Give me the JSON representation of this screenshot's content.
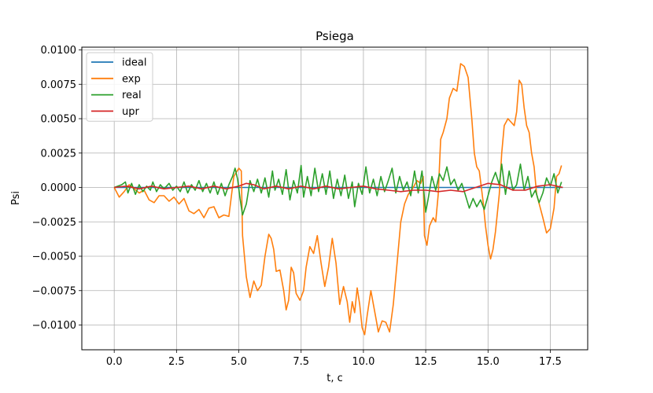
{
  "chart_data": {
    "type": "line",
    "title": "Psiega",
    "xlabel": "t, c",
    "ylabel": "Psi",
    "xlim": [
      -1.3,
      19.0
    ],
    "ylim": [
      -0.0118,
      0.0102
    ],
    "grid": true,
    "legend_position": "top-left",
    "x_ticks": [
      0.0,
      2.5,
      5.0,
      7.5,
      10.0,
      12.5,
      15.0,
      17.5
    ],
    "x_tick_labels": [
      "0.0",
      "2.5",
      "5.0",
      "7.5",
      "10.0",
      "12.5",
      "15.0",
      "17.5"
    ],
    "y_ticks": [
      0.01,
      0.0075,
      0.005,
      0.0025,
      0.0,
      -0.0025,
      -0.005,
      -0.0075,
      -0.01
    ],
    "y_tick_labels": [
      "0.0100",
      "0.0075",
      "0.0050",
      "0.0025",
      "0.0000",
      "−0.0025",
      "−0.0050",
      "−0.0075",
      "−0.0100"
    ],
    "series": [
      {
        "name": "ideal",
        "color": "#1f77b4",
        "points": [
          [
            0.0,
            0.0
          ],
          [
            18.0,
            0.0
          ]
        ]
      },
      {
        "name": "exp",
        "color": "#ff7f0e",
        "points": [
          [
            0.0,
            0.0
          ],
          [
            0.2,
            -0.0007
          ],
          [
            0.4,
            -0.0003
          ],
          [
            0.6,
            0.0002
          ],
          [
            0.8,
            -0.0001
          ],
          [
            1.0,
            -0.0004
          ],
          [
            1.2,
            -0.0002
          ],
          [
            1.4,
            -0.0009
          ],
          [
            1.6,
            -0.0011
          ],
          [
            1.8,
            -0.0006
          ],
          [
            2.0,
            -0.0006
          ],
          [
            2.2,
            -0.001
          ],
          [
            2.4,
            -0.0007
          ],
          [
            2.6,
            -0.0012
          ],
          [
            2.8,
            -0.0008
          ],
          [
            3.0,
            -0.0017
          ],
          [
            3.2,
            -0.0019
          ],
          [
            3.4,
            -0.0016
          ],
          [
            3.6,
            -0.0022
          ],
          [
            3.8,
            -0.0015
          ],
          [
            4.0,
            -0.0014
          ],
          [
            4.2,
            -0.0022
          ],
          [
            4.4,
            -0.002
          ],
          [
            4.6,
            -0.0021
          ],
          [
            4.8,
            0.0008
          ],
          [
            5.0,
            0.0014
          ],
          [
            5.1,
            0.0012
          ],
          [
            5.15,
            -0.0035
          ],
          [
            5.3,
            -0.0065
          ],
          [
            5.45,
            -0.008
          ],
          [
            5.6,
            -0.0068
          ],
          [
            5.75,
            -0.0075
          ],
          [
            5.9,
            -0.0071
          ],
          [
            6.05,
            -0.005
          ],
          [
            6.2,
            -0.0034
          ],
          [
            6.3,
            -0.0037
          ],
          [
            6.4,
            -0.0045
          ],
          [
            6.5,
            -0.0061
          ],
          [
            6.65,
            -0.006
          ],
          [
            6.8,
            -0.0075
          ],
          [
            6.9,
            -0.0089
          ],
          [
            7.0,
            -0.0082
          ],
          [
            7.1,
            -0.0058
          ],
          [
            7.2,
            -0.0062
          ],
          [
            7.3,
            -0.0077
          ],
          [
            7.45,
            -0.0082
          ],
          [
            7.6,
            -0.0075
          ],
          [
            7.7,
            -0.0058
          ],
          [
            7.85,
            -0.0043
          ],
          [
            8.0,
            -0.0048
          ],
          [
            8.15,
            -0.0035
          ],
          [
            8.3,
            -0.0055
          ],
          [
            8.45,
            -0.0072
          ],
          [
            8.6,
            -0.0058
          ],
          [
            8.75,
            -0.0037
          ],
          [
            8.9,
            -0.0055
          ],
          [
            9.05,
            -0.0085
          ],
          [
            9.2,
            -0.0072
          ],
          [
            9.35,
            -0.0083
          ],
          [
            9.45,
            -0.0098
          ],
          [
            9.55,
            -0.0083
          ],
          [
            9.65,
            -0.0091
          ],
          [
            9.75,
            -0.0073
          ],
          [
            9.85,
            -0.0085
          ],
          [
            9.95,
            -0.0102
          ],
          [
            10.05,
            -0.0107
          ],
          [
            10.15,
            -0.0093
          ],
          [
            10.3,
            -0.0075
          ],
          [
            10.5,
            -0.0095
          ],
          [
            10.6,
            -0.0105
          ],
          [
            10.75,
            -0.0097
          ],
          [
            10.9,
            -0.0098
          ],
          [
            11.05,
            -0.0105
          ],
          [
            11.2,
            -0.0085
          ],
          [
            11.35,
            -0.0055
          ],
          [
            11.5,
            -0.0025
          ],
          [
            11.65,
            -0.0012
          ],
          [
            11.8,
            -0.0005
          ],
          [
            12.0,
            0.0
          ],
          [
            12.15,
            0.0005
          ],
          [
            12.3,
            0.0003
          ],
          [
            12.4,
            0.0008
          ],
          [
            12.45,
            -0.0035
          ],
          [
            12.55,
            -0.0042
          ],
          [
            12.65,
            -0.0028
          ],
          [
            12.8,
            -0.0022
          ],
          [
            12.9,
            -0.0025
          ],
          [
            13.0,
            -0.0005
          ],
          [
            13.1,
            0.0035
          ],
          [
            13.2,
            0.004
          ],
          [
            13.35,
            0.005
          ],
          [
            13.45,
            0.0065
          ],
          [
            13.6,
            0.0072
          ],
          [
            13.75,
            0.007
          ],
          [
            13.9,
            0.009
          ],
          [
            14.05,
            0.0088
          ],
          [
            14.2,
            0.008
          ],
          [
            14.35,
            0.005
          ],
          [
            14.45,
            0.0025
          ],
          [
            14.55,
            0.0015
          ],
          [
            14.65,
            0.0012
          ],
          [
            14.8,
            -0.001
          ],
          [
            14.9,
            -0.0028
          ],
          [
            15.0,
            -0.0042
          ],
          [
            15.1,
            -0.0052
          ],
          [
            15.2,
            -0.0045
          ],
          [
            15.3,
            -0.0032
          ],
          [
            15.45,
            -0.0005
          ],
          [
            15.55,
            0.0025
          ],
          [
            15.65,
            0.0045
          ],
          [
            15.8,
            0.005
          ],
          [
            15.9,
            0.0048
          ],
          [
            16.05,
            0.0045
          ],
          [
            16.15,
            0.0055
          ],
          [
            16.25,
            0.0078
          ],
          [
            16.35,
            0.0075
          ],
          [
            16.45,
            0.0058
          ],
          [
            16.55,
            0.0045
          ],
          [
            16.65,
            0.004
          ],
          [
            16.75,
            0.0025
          ],
          [
            16.85,
            0.0015
          ],
          [
            16.95,
            -0.0005
          ],
          [
            17.1,
            -0.0015
          ],
          [
            17.2,
            -0.0022
          ],
          [
            17.35,
            -0.0033
          ],
          [
            17.5,
            -0.003
          ],
          [
            17.65,
            -0.0015
          ],
          [
            17.75,
            0.0008
          ],
          [
            17.85,
            0.001
          ],
          [
            17.95,
            0.0016
          ]
        ]
      },
      {
        "name": "real",
        "color": "#2ca02c",
        "points": [
          [
            0.0,
            0.0
          ],
          [
            0.3,
            0.0002
          ],
          [
            0.45,
            0.0004
          ],
          [
            0.55,
            -0.0004
          ],
          [
            0.7,
            0.0003
          ],
          [
            0.85,
            -0.0005
          ],
          [
            1.0,
            0.0002
          ],
          [
            1.15,
            -0.0003
          ],
          [
            1.3,
            0.0001
          ],
          [
            1.45,
            -0.0002
          ],
          [
            1.55,
            0.0004
          ],
          [
            1.7,
            -0.0003
          ],
          [
            1.85,
            0.0002
          ],
          [
            2.0,
            -0.0001
          ],
          [
            2.2,
            0.0003
          ],
          [
            2.35,
            -0.0002
          ],
          [
            2.5,
            0.0001
          ],
          [
            2.65,
            -0.0003
          ],
          [
            2.8,
            0.0004
          ],
          [
            2.95,
            -0.0004
          ],
          [
            3.1,
            0.0002
          ],
          [
            3.25,
            -0.0002
          ],
          [
            3.4,
            0.0005
          ],
          [
            3.55,
            -0.0003
          ],
          [
            3.7,
            0.0003
          ],
          [
            3.85,
            -0.0004
          ],
          [
            4.0,
            0.0004
          ],
          [
            4.15,
            -0.0005
          ],
          [
            4.3,
            0.0003
          ],
          [
            4.45,
            -0.0006
          ],
          [
            4.6,
            0.0002
          ],
          [
            4.75,
            0.0008
          ],
          [
            4.85,
            0.0014
          ],
          [
            4.95,
            0.0006
          ],
          [
            5.05,
            -0.0008
          ],
          [
            5.15,
            -0.002
          ],
          [
            5.3,
            -0.0012
          ],
          [
            5.45,
            0.0005
          ],
          [
            5.6,
            -0.0003
          ],
          [
            5.75,
            0.0006
          ],
          [
            5.9,
            -0.0004
          ],
          [
            6.05,
            0.0007
          ],
          [
            6.2,
            -0.0007
          ],
          [
            6.35,
            0.0012
          ],
          [
            6.45,
            -0.0002
          ],
          [
            6.6,
            0.0006
          ],
          [
            6.75,
            -0.0005
          ],
          [
            6.9,
            0.0013
          ],
          [
            7.05,
            -0.0009
          ],
          [
            7.2,
            0.0005
          ],
          [
            7.35,
            -0.0004
          ],
          [
            7.5,
            0.0016
          ],
          [
            7.6,
            -0.0007
          ],
          [
            7.75,
            0.0008
          ],
          [
            7.9,
            -0.0006
          ],
          [
            8.05,
            0.0014
          ],
          [
            8.2,
            -0.0003
          ],
          [
            8.35,
            0.001
          ],
          [
            8.5,
            -0.0005
          ],
          [
            8.65,
            0.0012
          ],
          [
            8.8,
            -0.0008
          ],
          [
            8.95,
            0.0006
          ],
          [
            9.1,
            -0.0006
          ],
          [
            9.25,
            0.0009
          ],
          [
            9.4,
            -0.0008
          ],
          [
            9.55,
            0.0004
          ],
          [
            9.65,
            -0.0014
          ],
          [
            9.8,
            0.0003
          ],
          [
            9.95,
            -0.0005
          ],
          [
            10.1,
            0.0015
          ],
          [
            10.25,
            -0.0004
          ],
          [
            10.4,
            0.0006
          ],
          [
            10.55,
            -0.0006
          ],
          [
            10.7,
            0.0008
          ],
          [
            10.85,
            -0.0003
          ],
          [
            11.0,
            0.0005
          ],
          [
            11.15,
            0.0014
          ],
          [
            11.3,
            -0.0004
          ],
          [
            11.45,
            0.0008
          ],
          [
            11.6,
            -0.0002
          ],
          [
            11.75,
            0.0004
          ],
          [
            11.9,
            -0.0006
          ],
          [
            12.05,
            0.0012
          ],
          [
            12.2,
            -0.0004
          ],
          [
            12.35,
            0.0012
          ],
          [
            12.5,
            -0.0018
          ],
          [
            12.6,
            -0.0008
          ],
          [
            12.75,
            0.0008
          ],
          [
            12.9,
            -0.0002
          ],
          [
            13.05,
            0.001
          ],
          [
            13.2,
            0.0005
          ],
          [
            13.35,
            0.0015
          ],
          [
            13.5,
            0.0002
          ],
          [
            13.65,
            0.0006
          ],
          [
            13.8,
            -0.0002
          ],
          [
            13.95,
            0.0003
          ],
          [
            14.1,
            -0.0006
          ],
          [
            14.25,
            -0.0015
          ],
          [
            14.4,
            -0.0008
          ],
          [
            14.55,
            -0.0014
          ],
          [
            14.7,
            -0.0009
          ],
          [
            14.85,
            -0.0016
          ],
          [
            15.0,
            -0.0006
          ],
          [
            15.15,
            0.0004
          ],
          [
            15.3,
            0.0011
          ],
          [
            15.45,
            0.0002
          ],
          [
            15.55,
            0.0017
          ],
          [
            15.7,
            -0.0005
          ],
          [
            15.85,
            0.0012
          ],
          [
            16.0,
            -0.0002
          ],
          [
            16.15,
            0.0002
          ],
          [
            16.3,
            0.0017
          ],
          [
            16.45,
            -0.0002
          ],
          [
            16.6,
            0.0008
          ],
          [
            16.75,
            -0.0007
          ],
          [
            16.9,
            -0.0002
          ],
          [
            17.05,
            -0.0011
          ],
          [
            17.2,
            -0.0004
          ],
          [
            17.35,
            0.0007
          ],
          [
            17.5,
            0.0001
          ],
          [
            17.65,
            0.001
          ],
          [
            17.8,
            -0.0004
          ],
          [
            17.95,
            0.0004
          ]
        ]
      },
      {
        "name": "upr",
        "color": "#d62728",
        "points": [
          [
            0.0,
            0.0
          ],
          [
            0.5,
            0.0001
          ],
          [
            1.0,
            -0.0001
          ],
          [
            1.5,
            0.0001
          ],
          [
            2.0,
            -0.0001
          ],
          [
            2.5,
            0.0
          ],
          [
            3.0,
            0.0001
          ],
          [
            3.5,
            -0.0001
          ],
          [
            4.0,
            0.0001
          ],
          [
            4.5,
            -0.0001
          ],
          [
            5.0,
            0.0001
          ],
          [
            5.3,
            0.0003
          ],
          [
            5.6,
            0.0002
          ],
          [
            6.0,
            -0.0001
          ],
          [
            6.5,
            0.0001
          ],
          [
            7.0,
            -0.0001
          ],
          [
            7.5,
            0.0001
          ],
          [
            8.0,
            -0.0001
          ],
          [
            8.5,
            0.0001
          ],
          [
            9.0,
            -0.0001
          ],
          [
            9.5,
            0.0
          ],
          [
            10.0,
            0.0001
          ],
          [
            10.5,
            -0.0001
          ],
          [
            11.0,
            -0.0002
          ],
          [
            11.5,
            -0.0003
          ],
          [
            12.0,
            -0.0002
          ],
          [
            12.5,
            -0.0002
          ],
          [
            13.0,
            -0.0003
          ],
          [
            13.5,
            -0.0002
          ],
          [
            14.0,
            -0.0003
          ],
          [
            14.5,
            0.0
          ],
          [
            15.0,
            0.0003
          ],
          [
            15.5,
            0.0002
          ],
          [
            16.0,
            -0.0002
          ],
          [
            16.5,
            -0.0002
          ],
          [
            17.0,
            0.0001
          ],
          [
            17.5,
            0.0002
          ],
          [
            18.0,
            0.0
          ]
        ]
      }
    ]
  }
}
